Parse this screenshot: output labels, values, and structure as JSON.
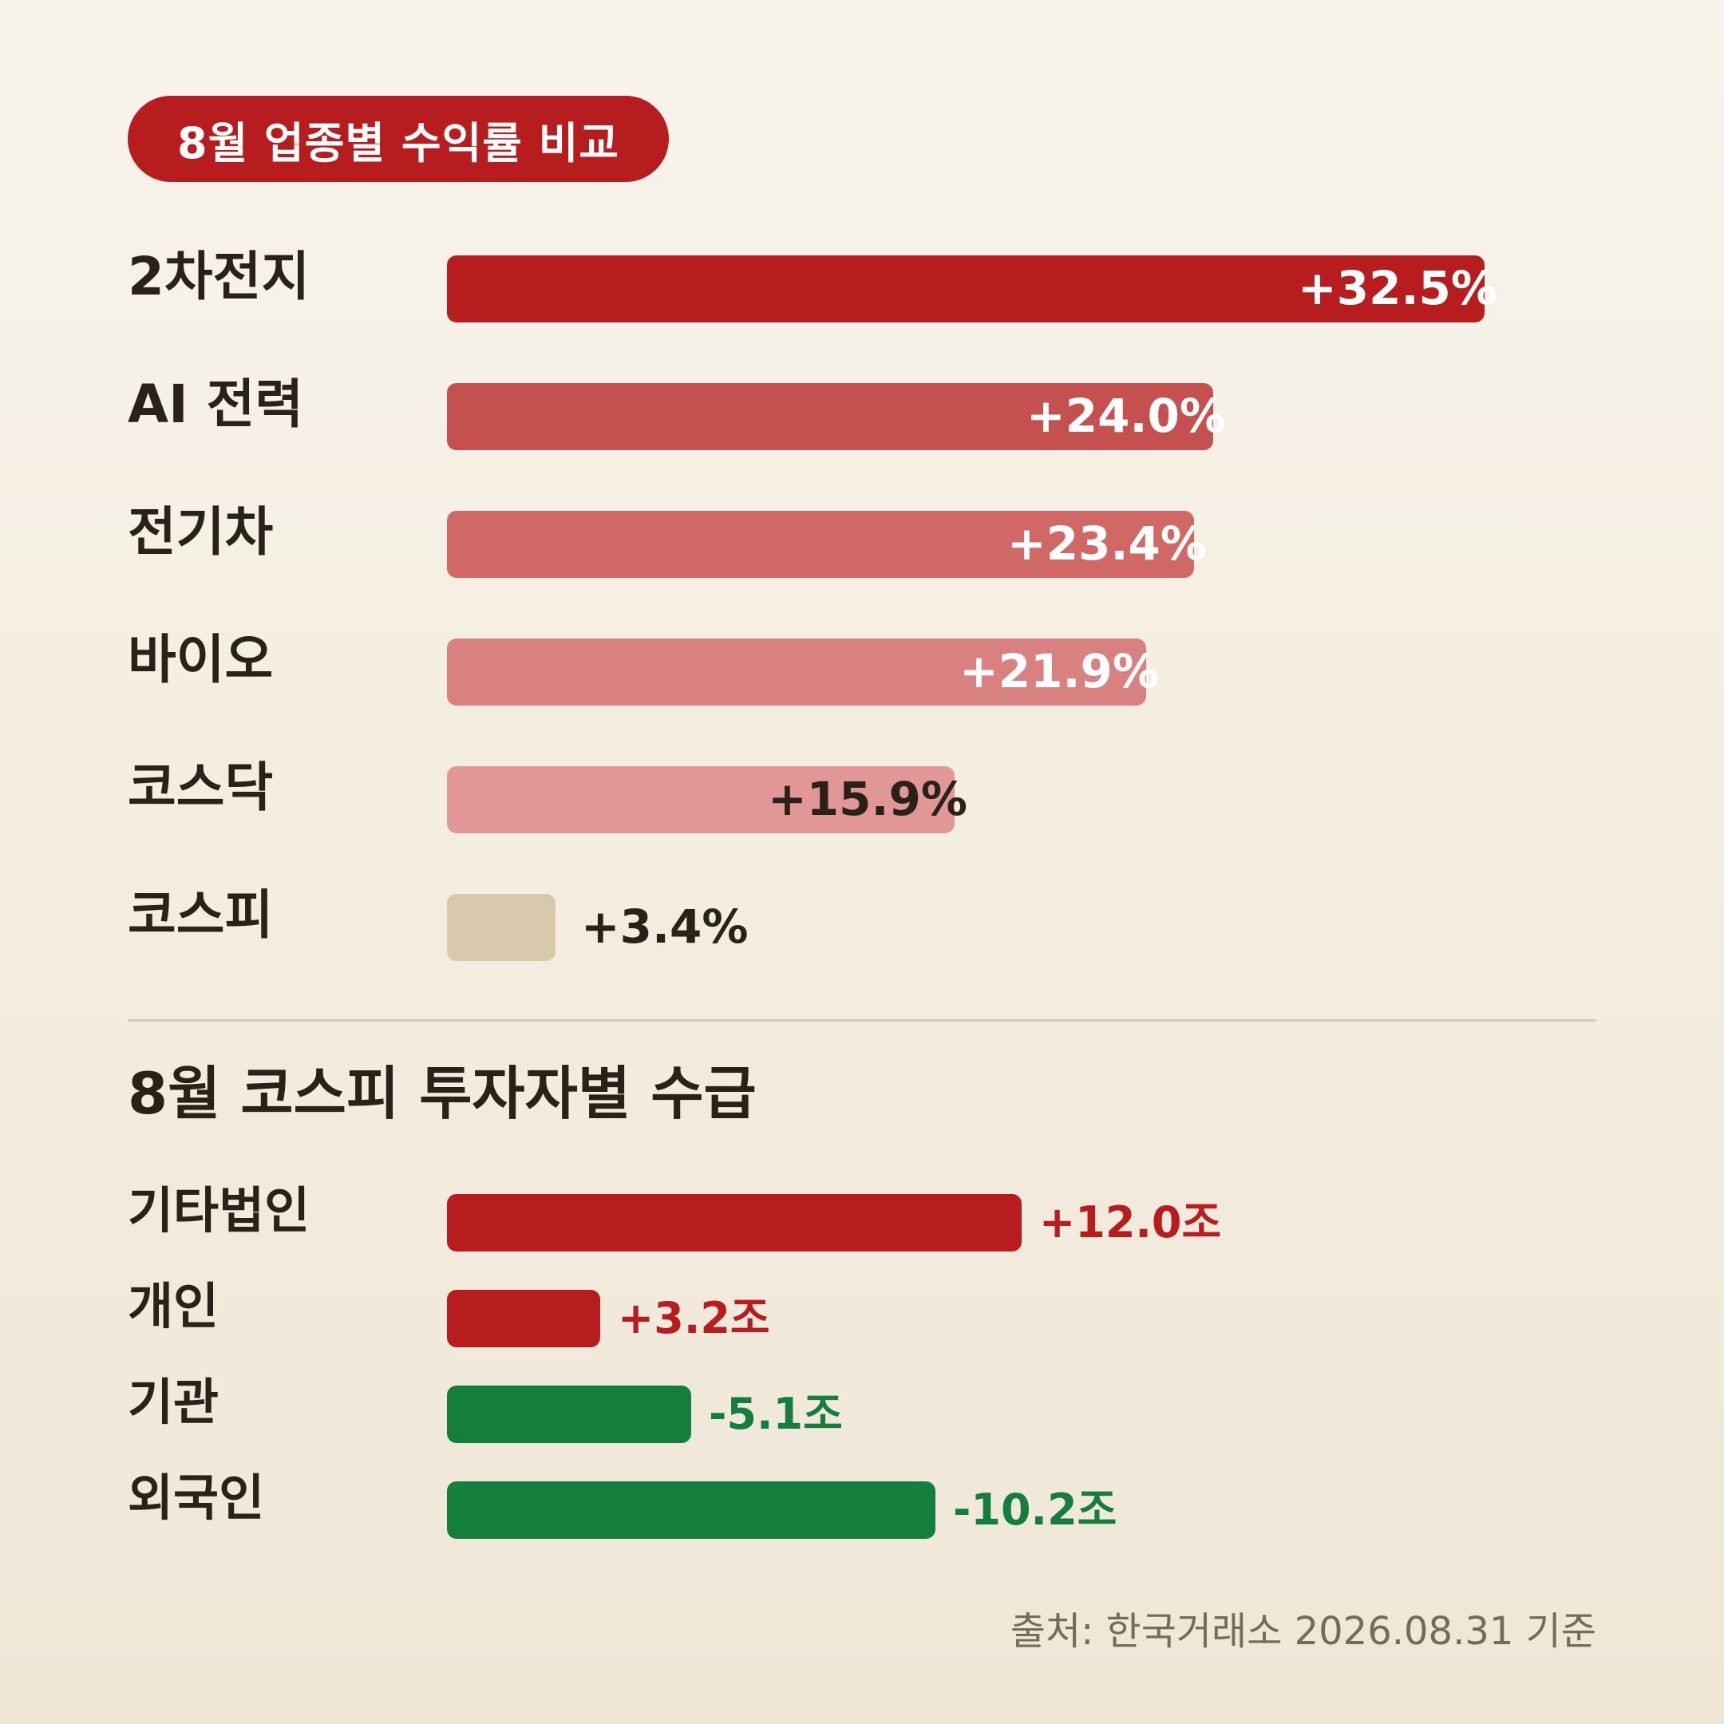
{
  "chart_data": [
    {
      "type": "bar",
      "orientation": "horizontal",
      "title": "8월 업종별 수익률 비교",
      "categories": [
        "2차전지",
        "AI 전력",
        "전기차",
        "바이오",
        "코스닥",
        "코스피"
      ],
      "values": [
        32.5,
        24.0,
        23.4,
        21.9,
        15.9,
        3.4
      ],
      "value_labels": [
        "+32.5%",
        "+24.0%",
        "+23.4%",
        "+21.9%",
        "+15.9%",
        "+3.4%"
      ],
      "colors": [
        "#b71c1e",
        "#c45050",
        "#d06866",
        "#d98080",
        "#e09796",
        "#d8c8ac"
      ],
      "label_colors": [
        "#ffffff",
        "#ffffff",
        "#ffffff",
        "#ffffff",
        "#2a2218",
        "#2a2218"
      ],
      "xlim": [
        0,
        40
      ]
    },
    {
      "type": "bar",
      "orientation": "horizontal",
      "title": "8월 코스피 투자자별 수급",
      "categories": [
        "기타법인",
        "개인",
        "기관",
        "외국인"
      ],
      "values": [
        12.0,
        3.2,
        -5.1,
        -10.2
      ],
      "value_labels": [
        "+12.0조",
        "+3.2조",
        "-5.1조",
        "-10.2조"
      ],
      "colors": [
        "#b71c1e",
        "#b71c1e",
        "#147e3c",
        "#147e3c"
      ],
      "label_colors": [
        "#b71c1e",
        "#b71c1e",
        "#147e3c",
        "#147e3c"
      ]
    }
  ],
  "source": "출처: 한국거래소 2026.08.31 기준"
}
